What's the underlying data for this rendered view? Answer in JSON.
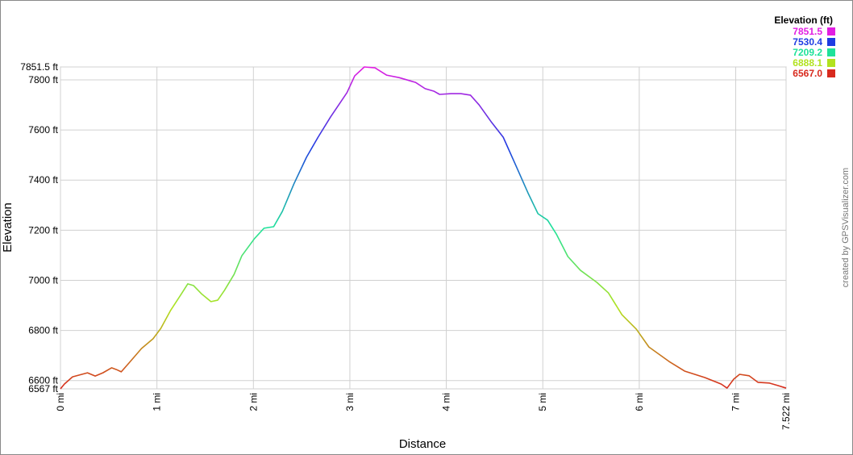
{
  "chart_data": {
    "type": "line",
    "x_label": "Distance",
    "y_label": "Elevation",
    "credit": "created by GPSVisualizer.com",
    "legend_title": "Elevation (ft)",
    "colorscale": [
      {
        "value": 7851.5,
        "color": "#e21ee2"
      },
      {
        "value": 7530.4,
        "color": "#1e3ce2"
      },
      {
        "value": 7209.2,
        "color": "#1ee29a"
      },
      {
        "value": 6888.1,
        "color": "#b2e21e"
      },
      {
        "value": 6567,
        "label": "6567.0",
        "color": "#d82a1e"
      }
    ],
    "grid": true,
    "xlim": [
      0,
      7.522
    ],
    "xticks": [
      {
        "value": 0,
        "label": "0 mi"
      },
      {
        "value": 1,
        "label": "1 mi"
      },
      {
        "value": 2,
        "label": "2 mi"
      },
      {
        "value": 3,
        "label": "3 mi"
      },
      {
        "value": 4,
        "label": "4 mi"
      },
      {
        "value": 5,
        "label": "5 mi"
      },
      {
        "value": 6,
        "label": "6 mi"
      },
      {
        "value": 7,
        "label": "7 mi"
      },
      {
        "value": 7.522,
        "label": "7.522 mi"
      }
    ],
    "ylim": [
      6567,
      7851.5
    ],
    "yticks": [
      {
        "value": 6567,
        "label": "6567 ft"
      },
      {
        "value": 6600,
        "label": "6600 ft"
      },
      {
        "value": 6800,
        "label": "6800 ft"
      },
      {
        "value": 7000,
        "label": "7000 ft"
      },
      {
        "value": 7200,
        "label": "7200 ft"
      },
      {
        "value": 7400,
        "label": "7400 ft"
      },
      {
        "value": 7600,
        "label": "7600 ft"
      },
      {
        "value": 7800,
        "label": "7800 ft"
      },
      {
        "value": 7851.5,
        "label": "7851.5 ft"
      }
    ],
    "x": [
      0,
      0.04,
      0.125,
      0.28,
      0.36,
      0.44,
      0.53,
      0.58,
      0.63,
      0.71,
      0.84,
      0.96,
      1.04,
      1.14,
      1.25,
      1.32,
      1.38,
      1.46,
      1.56,
      1.63,
      1.7,
      1.8,
      1.88,
      2.01,
      2.11,
      2.21,
      2.3,
      2.42,
      2.55,
      2.67,
      2.8,
      2.97,
      3.05,
      3.15,
      3.26,
      3.38,
      3.51,
      3.68,
      3.78,
      3.87,
      3.93,
      4.05,
      4.15,
      4.25,
      4.34,
      4.47,
      4.59,
      4.72,
      4.85,
      4.95,
      5.05,
      5.14,
      5.26,
      5.39,
      5.56,
      5.68,
      5.82,
      5.97,
      6.1,
      6.31,
      6.47,
      6.68,
      6.85,
      6.91,
      6.98,
      7.04,
      7.14,
      7.23,
      7.35,
      7.44,
      7.522
    ],
    "values": [
      6567,
      6586,
      6615,
      6631,
      6618,
      6631,
      6651,
      6644,
      6635,
      6670,
      6728,
      6767,
      6808,
      6879,
      6944,
      6986,
      6979,
      6947,
      6915,
      6921,
      6960,
      7024,
      7098,
      7166,
      7208,
      7214,
      7275,
      7385,
      7491,
      7571,
      7652,
      7749,
      7816,
      7851.5,
      7848,
      7819,
      7809,
      7790,
      7765,
      7755,
      7742,
      7745,
      7745,
      7739,
      7700,
      7630,
      7571,
      7459,
      7346,
      7266,
      7240,
      7185,
      7095,
      7040,
      6992,
      6950,
      6863,
      6805,
      6734,
      6676,
      6638,
      6612,
      6586,
      6570,
      6606,
      6625,
      6619,
      6593,
      6590,
      6580,
      6570
    ]
  }
}
